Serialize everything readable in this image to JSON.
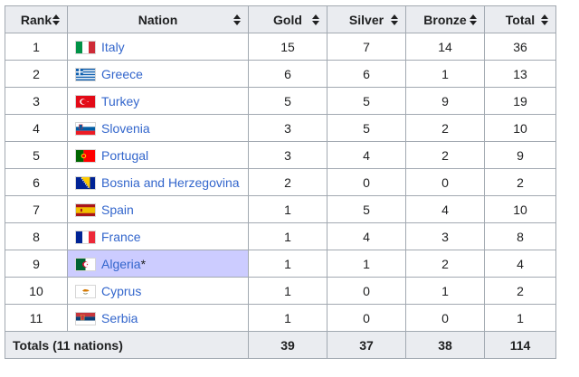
{
  "headers": {
    "rank": "Rank",
    "nation": "Nation",
    "gold": "Gold",
    "silver": "Silver",
    "bronze": "Bronze",
    "total": "Total"
  },
  "colors": {
    "gold": "#f8d86b",
    "silver": "#cbcfd3",
    "bronze": "#c9a57f",
    "host": "#ccccff",
    "link": "#3366cc"
  },
  "rows": [
    {
      "rank": "1",
      "nation": "Italy",
      "flag": "italy-flag-icon",
      "gold": "15",
      "silver": "7",
      "bronze": "14",
      "total": "36"
    },
    {
      "rank": "2",
      "nation": "Greece",
      "flag": "greece-flag-icon",
      "gold": "6",
      "silver": "6",
      "bronze": "1",
      "total": "13"
    },
    {
      "rank": "3",
      "nation": "Turkey",
      "flag": "turkey-flag-icon",
      "gold": "5",
      "silver": "5",
      "bronze": "9",
      "total": "19"
    },
    {
      "rank": "4",
      "nation": "Slovenia",
      "flag": "slovenia-flag-icon",
      "gold": "3",
      "silver": "5",
      "bronze": "2",
      "total": "10"
    },
    {
      "rank": "5",
      "nation": "Portugal",
      "flag": "portugal-flag-icon",
      "gold": "3",
      "silver": "4",
      "bronze": "2",
      "total": "9"
    },
    {
      "rank": "6",
      "nation": "Bosnia and Herzegovina",
      "flag": "bosnia-flag-icon",
      "gold": "2",
      "silver": "0",
      "bronze": "0",
      "total": "2"
    },
    {
      "rank": "7",
      "nation": "Spain",
      "flag": "spain-flag-icon",
      "gold": "1",
      "silver": "5",
      "bronze": "4",
      "total": "10"
    },
    {
      "rank": "8",
      "nation": "France",
      "flag": "france-flag-icon",
      "gold": "1",
      "silver": "4",
      "bronze": "3",
      "total": "8"
    },
    {
      "rank": "9",
      "nation": "Algeria",
      "host_mark": "*",
      "flag": "algeria-flag-icon",
      "gold": "1",
      "silver": "1",
      "bronze": "2",
      "total": "4"
    },
    {
      "rank": "10",
      "nation": "Cyprus",
      "flag": "cyprus-flag-icon",
      "gold": "1",
      "silver": "0",
      "bronze": "1",
      "total": "2"
    },
    {
      "rank": "11",
      "nation": "Serbia",
      "flag": "serbia-flag-icon",
      "gold": "1",
      "silver": "0",
      "bronze": "0",
      "total": "1"
    }
  ],
  "totals": {
    "label": "Totals (11 nations)",
    "gold": "39",
    "silver": "37",
    "bronze": "38",
    "total": "114"
  }
}
